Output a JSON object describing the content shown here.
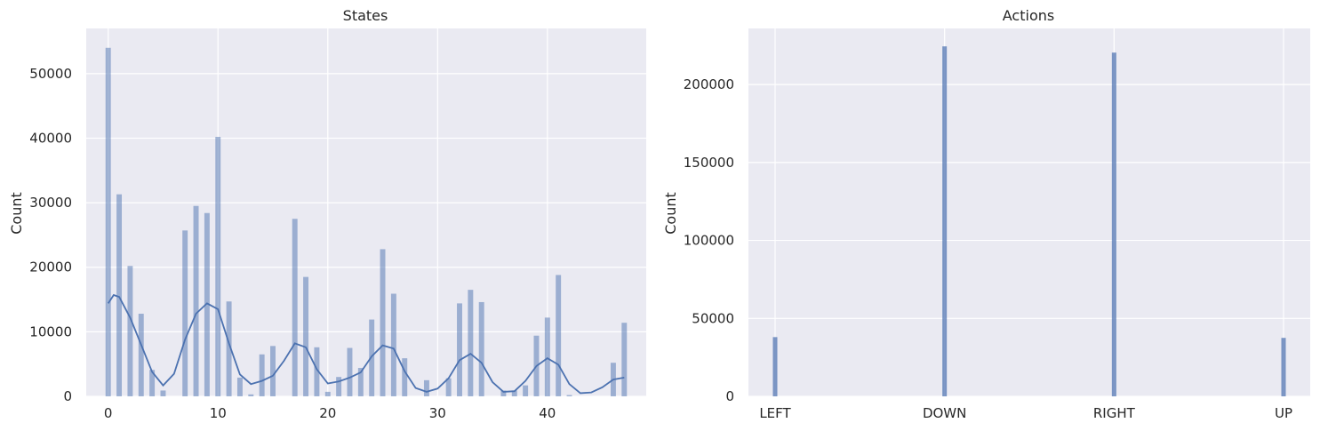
{
  "chart_data": [
    {
      "type": "bar",
      "title": "States",
      "xlabel": "",
      "ylabel": "Count",
      "xlim": [
        -2,
        49
      ],
      "ylim": [
        0,
        57000
      ],
      "x_ticks": [
        0,
        10,
        20,
        30,
        40
      ],
      "y_ticks": [
        0,
        10000,
        20000,
        30000,
        40000,
        50000
      ],
      "grid": true,
      "kde": true,
      "bar_color": "#4c72b0",
      "bars": [
        {
          "x": 0,
          "value": 54000
        },
        {
          "x": 1,
          "value": 31300
        },
        {
          "x": 2,
          "value": 20200
        },
        {
          "x": 3,
          "value": 12800
        },
        {
          "x": 4,
          "value": 4100
        },
        {
          "x": 5,
          "value": 900
        },
        {
          "x": 7,
          "value": 25700
        },
        {
          "x": 8,
          "value": 29500
        },
        {
          "x": 9,
          "value": 28400
        },
        {
          "x": 10,
          "value": 40200
        },
        {
          "x": 11,
          "value": 14700
        },
        {
          "x": 12,
          "value": 2900
        },
        {
          "x": 13,
          "value": 300
        },
        {
          "x": 14,
          "value": 6500
        },
        {
          "x": 15,
          "value": 7800
        },
        {
          "x": 17,
          "value": 27500
        },
        {
          "x": 18,
          "value": 18500
        },
        {
          "x": 19,
          "value": 7600
        },
        {
          "x": 20,
          "value": 700
        },
        {
          "x": 21,
          "value": 3000
        },
        {
          "x": 22,
          "value": 7500
        },
        {
          "x": 23,
          "value": 4400
        },
        {
          "x": 24,
          "value": 11900
        },
        {
          "x": 25,
          "value": 22800
        },
        {
          "x": 26,
          "value": 15900
        },
        {
          "x": 27,
          "value": 5900
        },
        {
          "x": 29,
          "value": 2500
        },
        {
          "x": 31,
          "value": 2800
        },
        {
          "x": 32,
          "value": 14400
        },
        {
          "x": 33,
          "value": 16500
        },
        {
          "x": 34,
          "value": 14600
        },
        {
          "x": 36,
          "value": 900
        },
        {
          "x": 37,
          "value": 900
        },
        {
          "x": 38,
          "value": 1700
        },
        {
          "x": 39,
          "value": 9400
        },
        {
          "x": 40,
          "value": 12200
        },
        {
          "x": 41,
          "value": 18800
        },
        {
          "x": 42,
          "value": 200
        },
        {
          "x": 46,
          "value": 5200
        },
        {
          "x": 47,
          "value": 11400
        }
      ],
      "kde_curve": [
        {
          "x": 0,
          "y": 14400
        },
        {
          "x": 0.5,
          "y": 15700
        },
        {
          "x": 1,
          "y": 15400
        },
        {
          "x": 2,
          "y": 12200
        },
        {
          "x": 3,
          "y": 8000
        },
        {
          "x": 4,
          "y": 3800
        },
        {
          "x": 5,
          "y": 1700
        },
        {
          "x": 6,
          "y": 3500
        },
        {
          "x": 7,
          "y": 8800
        },
        {
          "x": 8,
          "y": 12800
        },
        {
          "x": 9,
          "y": 14400
        },
        {
          "x": 10,
          "y": 13500
        },
        {
          "x": 11,
          "y": 8200
        },
        {
          "x": 12,
          "y": 3400
        },
        {
          "x": 13,
          "y": 1900
        },
        {
          "x": 14,
          "y": 2400
        },
        {
          "x": 15,
          "y": 3200
        },
        {
          "x": 16,
          "y": 5500
        },
        {
          "x": 17,
          "y": 8200
        },
        {
          "x": 18,
          "y": 7600
        },
        {
          "x": 19,
          "y": 4200
        },
        {
          "x": 20,
          "y": 2000
        },
        {
          "x": 21,
          "y": 2300
        },
        {
          "x": 22,
          "y": 2900
        },
        {
          "x": 23,
          "y": 3700
        },
        {
          "x": 24,
          "y": 6200
        },
        {
          "x": 25,
          "y": 7900
        },
        {
          "x": 26,
          "y": 7400
        },
        {
          "x": 27,
          "y": 3900
        },
        {
          "x": 28,
          "y": 1300
        },
        {
          "x": 29,
          "y": 700
        },
        {
          "x": 30,
          "y": 1200
        },
        {
          "x": 31,
          "y": 2800
        },
        {
          "x": 32,
          "y": 5600
        },
        {
          "x": 33,
          "y": 6600
        },
        {
          "x": 34,
          "y": 5200
        },
        {
          "x": 35,
          "y": 2200
        },
        {
          "x": 36,
          "y": 700
        },
        {
          "x": 37,
          "y": 800
        },
        {
          "x": 38,
          "y": 2400
        },
        {
          "x": 39,
          "y": 4700
        },
        {
          "x": 40,
          "y": 5900
        },
        {
          "x": 41,
          "y": 4900
        },
        {
          "x": 42,
          "y": 1900
        },
        {
          "x": 43,
          "y": 500
        },
        {
          "x": 44,
          "y": 600
        },
        {
          "x": 45,
          "y": 1400
        },
        {
          "x": 46,
          "y": 2600
        },
        {
          "x": 47,
          "y": 2900
        }
      ]
    },
    {
      "type": "bar",
      "title": "Actions",
      "xlabel": "",
      "ylabel": "Count",
      "categories": [
        "LEFT",
        "DOWN",
        "RIGHT",
        "UP"
      ],
      "values": [
        38000,
        224500,
        220500,
        37500
      ],
      "ylim": [
        0,
        236000
      ],
      "y_ticks": [
        0,
        50000,
        100000,
        150000,
        200000
      ],
      "grid": true,
      "bar_color": "#4c72b0"
    }
  ],
  "colors": {
    "axes_background": "#eaeaf2",
    "grid": "#ffffff",
    "bar": "#4c72b0",
    "text": "#262626"
  }
}
